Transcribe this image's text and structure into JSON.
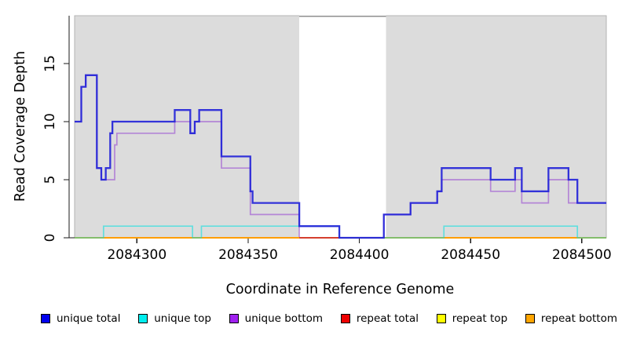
{
  "axes": {
    "xlabel": "Coordinate in Reference Genome",
    "ylabel": "Read Coverage Depth"
  },
  "legend": {
    "items": [
      {
        "label": "unique total",
        "color": "#0000ee"
      },
      {
        "label": "unique top",
        "color": "#00eeee"
      },
      {
        "label": "unique bottom",
        "color": "#a020f0"
      },
      {
        "label": "repeat total",
        "color": "#ee0000"
      },
      {
        "label": "repeat top",
        "color": "#ffff00"
      },
      {
        "label": "repeat bottom",
        "color": "#ffa500"
      }
    ]
  },
  "chart_data": {
    "type": "line",
    "subtype": "step-coverage",
    "title": "",
    "xlabel": "Coordinate in Reference Genome",
    "ylabel": "Read Coverage Depth",
    "xlim": [
      2084272,
      2084511
    ],
    "ylim": [
      0,
      19
    ],
    "x_ticks": [
      2084300,
      2084350,
      2084400,
      2084450,
      2084500
    ],
    "y_ticks": [
      0,
      5,
      10,
      15
    ],
    "plot_bg": "#dcdcdc",
    "plot_border": "#b3b3b3",
    "grid": false,
    "legend_position": "bottom",
    "masked_band": {
      "from": 2084373,
      "to": 2084412,
      "color": "#ffffff",
      "top_edge_color": "#8f8f8f"
    },
    "series": [
      {
        "name": "repeat top",
        "color": "#ffff00",
        "opacity": 0.9,
        "width": 1.7,
        "segments": [
          {
            "points": [
              [
                2084272,
                0
              ]
            ],
            "end": 2084511
          }
        ]
      },
      {
        "name": "unique bottom",
        "color": "#8b2fd0",
        "opacity": 0.5,
        "width": 1.7,
        "segments": [
          {
            "points": [
              [
                2084272,
                10
              ],
              [
                2084275,
                13
              ],
              [
                2084277,
                14
              ],
              [
                2084282,
                6
              ],
              [
                2084284,
                5
              ],
              [
                2084290,
                8
              ],
              [
                2084291,
                9
              ],
              [
                2084317,
                10
              ],
              [
                2084324,
                9
              ],
              [
                2084326,
                10
              ],
              [
                2084338,
                6
              ],
              [
                2084351,
                2
              ],
              [
                2084373,
                0
              ],
              [
                2084411,
                2
              ],
              [
                2084423,
                3
              ],
              [
                2084435,
                4
              ],
              [
                2084437,
                5
              ],
              [
                2084459,
                4
              ],
              [
                2084470,
                5
              ],
              [
                2084473,
                3
              ],
              [
                2084485,
                5
              ],
              [
                2084494,
                3
              ]
            ],
            "end": 2084511
          }
        ]
      },
      {
        "name": "repeat total",
        "color": "#dd0000",
        "opacity": 0.7,
        "width": 1.7,
        "segments": [
          {
            "points": [
              [
                2084373,
                0
              ]
            ],
            "end": 2084411
          }
        ]
      },
      {
        "name": "repeat bottom",
        "color": "#ff9d00",
        "opacity": 1.0,
        "width": 2.0,
        "segments": [
          {
            "points": [
              [
                2084272,
                0
              ]
            ],
            "end": 2084373
          },
          {
            "points": [
              [
                2084411,
                0
              ]
            ],
            "end": 2084511
          }
        ]
      },
      {
        "name": "unique top",
        "color": "#00e0e0",
        "opacity": 0.55,
        "width": 1.7,
        "segments": [
          {
            "points": [
              [
                2084272,
                0
              ],
              [
                2084285,
                1
              ],
              [
                2084325,
                0
              ],
              [
                2084329,
                1
              ],
              [
                2084391,
                0
              ],
              [
                2084438,
                1
              ],
              [
                2084498,
                0
              ]
            ],
            "end": 2084511
          }
        ]
      },
      {
        "name": "unique total",
        "color": "#2424d8",
        "opacity": 0.92,
        "width": 2.3,
        "segments": [
          {
            "points": [
              [
                2084272,
                10
              ],
              [
                2084275,
                13
              ],
              [
                2084277,
                14
              ],
              [
                2084282,
                6
              ],
              [
                2084284,
                5
              ],
              [
                2084286,
                6
              ],
              [
                2084288,
                9
              ],
              [
                2084289,
                10
              ],
              [
                2084317,
                11
              ],
              [
                2084324,
                9
              ],
              [
                2084326,
                10
              ],
              [
                2084328,
                11
              ],
              [
                2084338,
                7
              ],
              [
                2084351,
                4
              ],
              [
                2084352,
                3
              ],
              [
                2084373,
                1
              ],
              [
                2084391,
                0
              ],
              [
                2084411,
                2
              ],
              [
                2084423,
                3
              ],
              [
                2084435,
                4
              ],
              [
                2084437,
                6
              ],
              [
                2084459,
                5
              ],
              [
                2084470,
                6
              ],
              [
                2084473,
                4
              ],
              [
                2084485,
                6
              ],
              [
                2084494,
                5
              ],
              [
                2084498,
                3
              ]
            ],
            "end": 2084511
          }
        ]
      }
    ]
  }
}
